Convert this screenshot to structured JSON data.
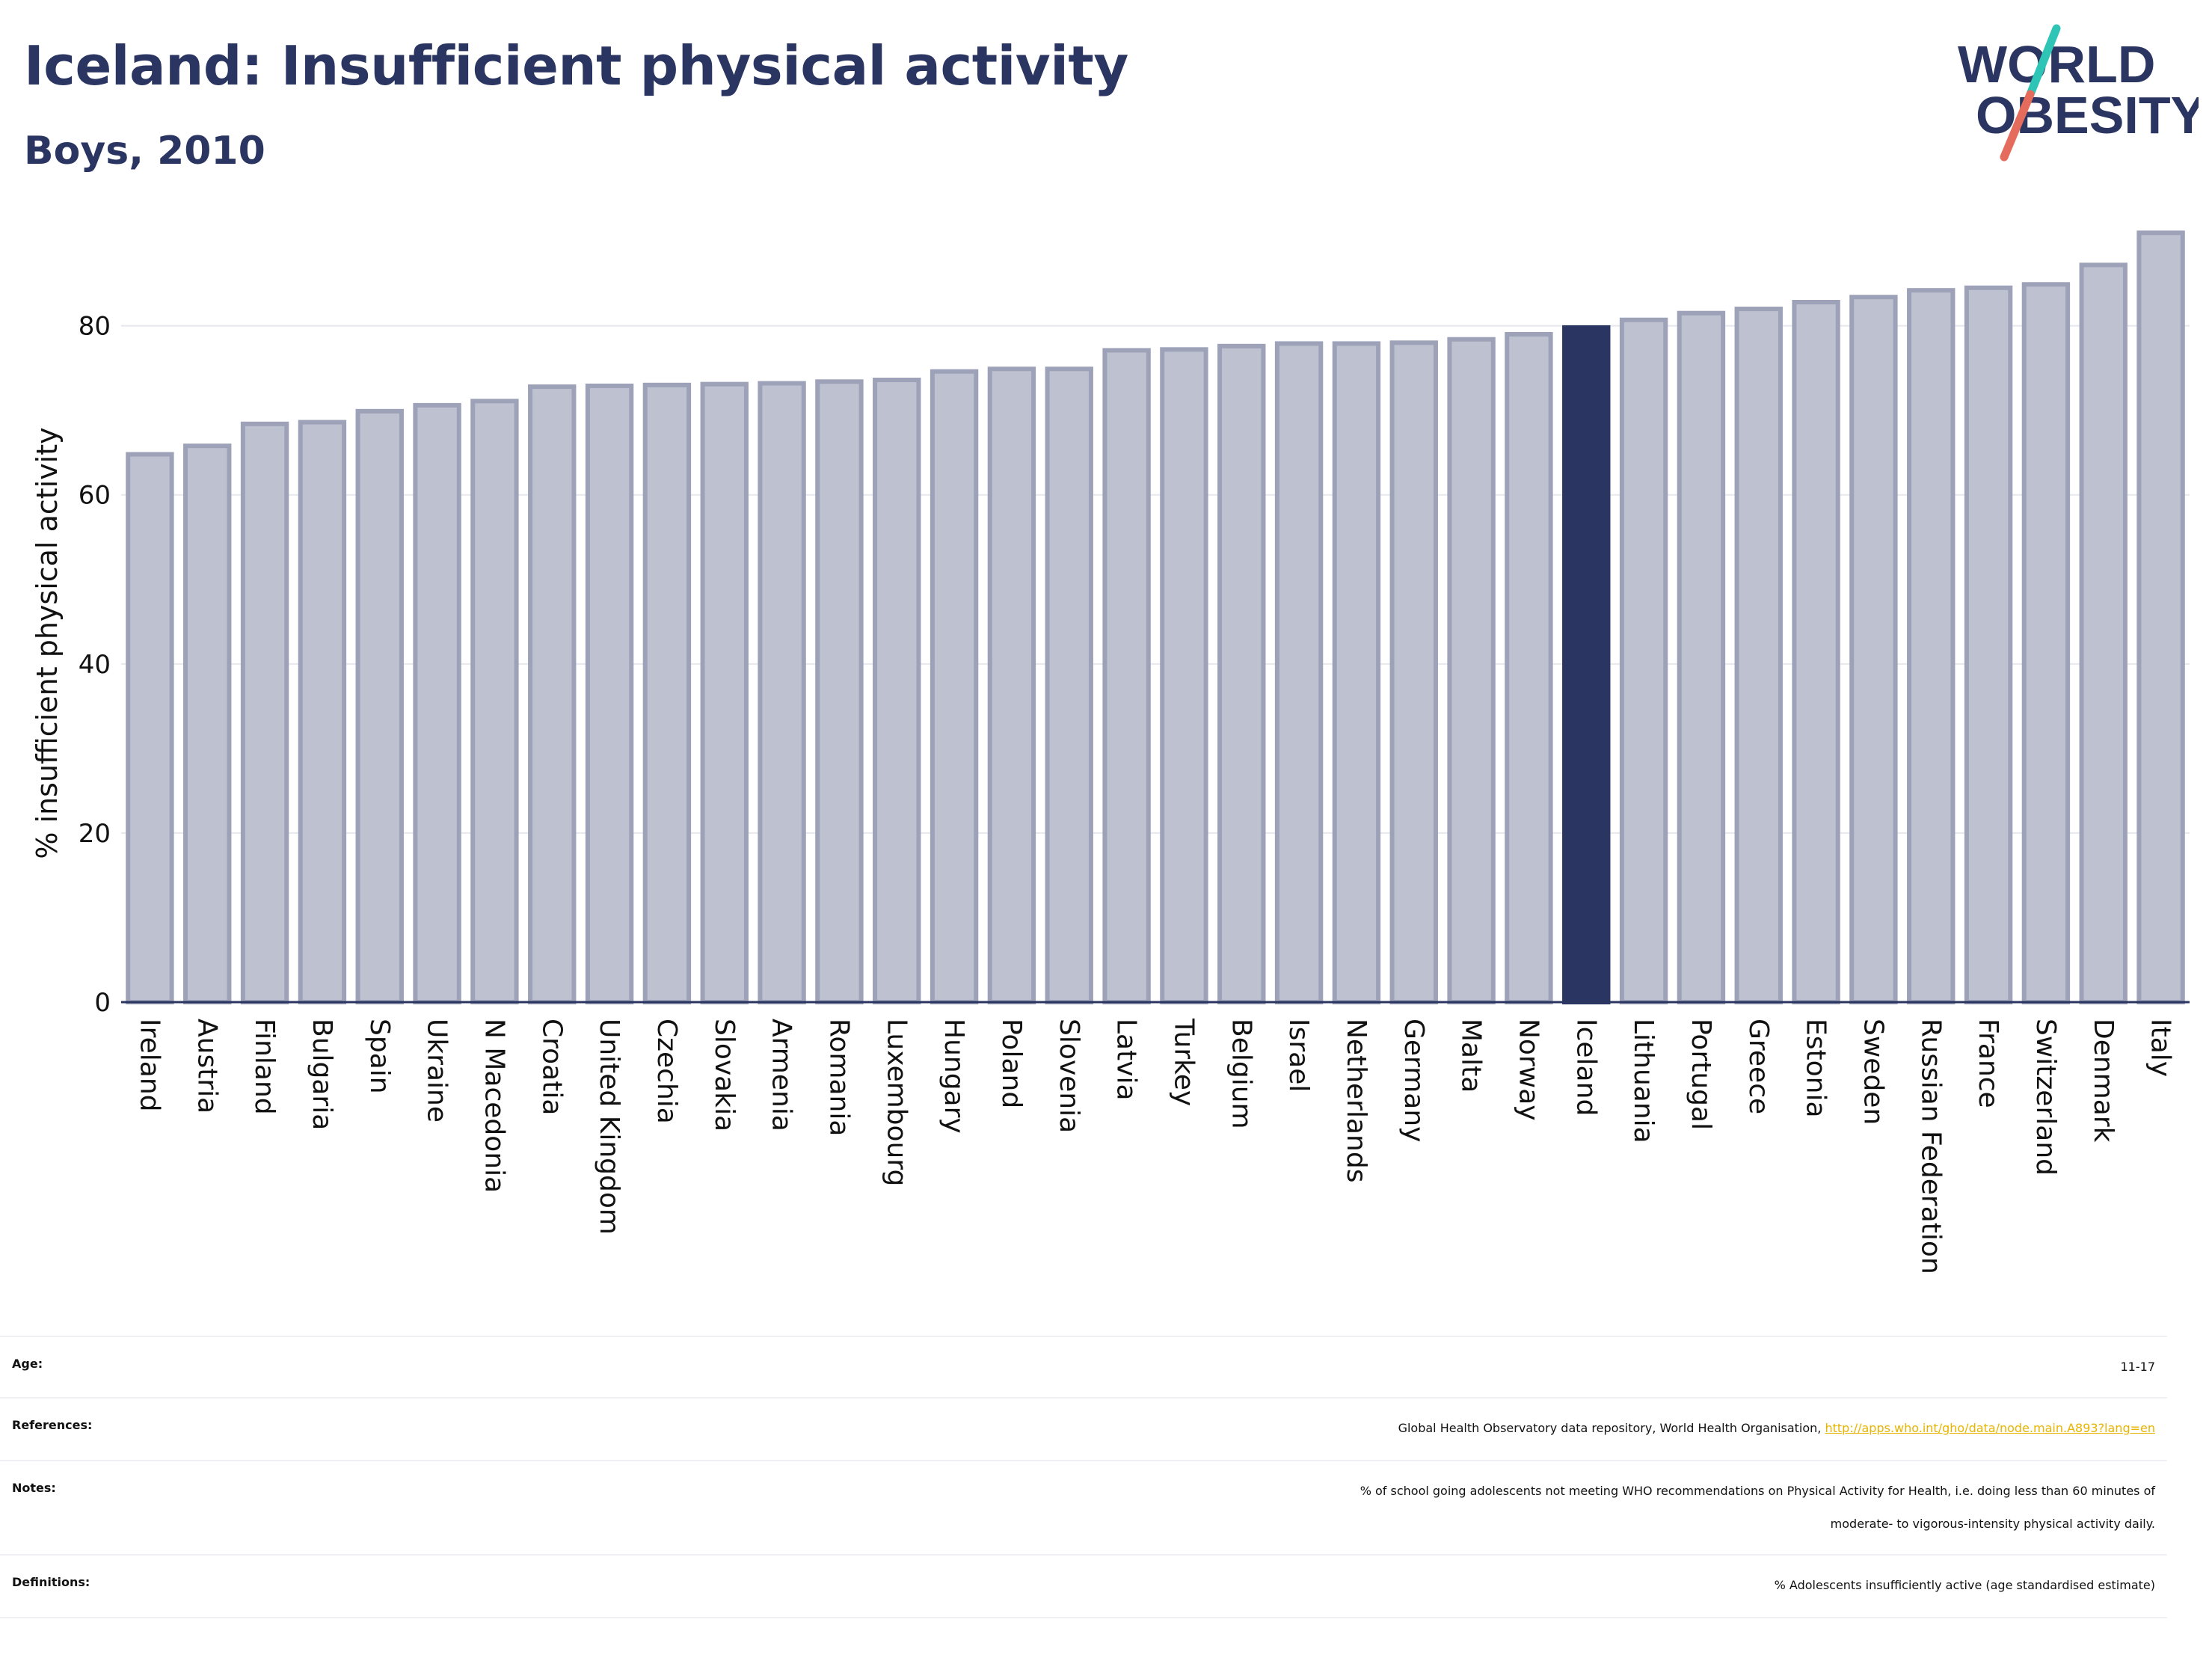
{
  "header": {
    "title": "Iceland: Insufficient physical activity",
    "subtitle": "Boys, 2010"
  },
  "logo": {
    "line1": "WORLD",
    "line2": "OBESITY"
  },
  "colors": {
    "title": "#2b3561",
    "bar": "#bec1cf",
    "bar_border": "#9da2b8",
    "highlight": "#2b3561",
    "accent_teal": "#2ec4b6",
    "accent_red": "#e56b5d"
  },
  "chart_data": {
    "type": "bar",
    "title": "Iceland: Insufficient physical activity",
    "subtitle": "Boys, 2010",
    "xlabel": "",
    "ylabel": "% insufficient physical activity",
    "ylim": [
      0,
      92
    ],
    "yticks": [
      0,
      20,
      40,
      60,
      80
    ],
    "grid": true,
    "highlight": "Iceland",
    "categories": [
      "Ireland",
      "Austria",
      "Finland",
      "Bulgaria",
      "Spain",
      "Ukraine",
      "N Macedonia",
      "Croatia",
      "United Kingdom",
      "Czechia",
      "Slovakia",
      "Armenia",
      "Romania",
      "Luxembourg",
      "Hungary",
      "Poland",
      "Slovenia",
      "Latvia",
      "Turkey",
      "Belgium",
      "Israel",
      "Netherlands",
      "Germany",
      "Malta",
      "Norway",
      "Iceland",
      "Lithuania",
      "Portugal",
      "Greece",
      "Estonia",
      "Sweden",
      "Russian Federation",
      "France",
      "Switzerland",
      "Denmark",
      "Italy"
    ],
    "values": [
      64.8,
      65.8,
      68.4,
      68.6,
      69.9,
      70.6,
      71.1,
      72.8,
      72.9,
      73.0,
      73.1,
      73.2,
      73.4,
      73.6,
      74.6,
      74.9,
      74.9,
      77.1,
      77.2,
      77.6,
      77.9,
      77.9,
      78.0,
      78.4,
      79.0,
      79.8,
      80.7,
      81.5,
      82.0,
      82.8,
      83.4,
      84.2,
      84.5,
      84.9,
      87.2,
      91.0
    ]
  },
  "meta": {
    "age": {
      "label": "Age:",
      "value": "11-17"
    },
    "references": {
      "label": "References:",
      "text": "Global Health Observatory data repository, World Health Organisation, ",
      "link": "http://apps.who.int/gho/data/node.main.A893?lang=en"
    },
    "notes": {
      "label": "Notes:",
      "line1": "% of school going adolescents not meeting WHO recommendations on Physical Activity for Health, i.e. doing less than 60 minutes of",
      "line2": "moderate- to vigorous-intensity physical activity daily."
    },
    "definitions": {
      "label": "Definitions:",
      "value": "% Adolescents insufficiently active (age standardised estimate)"
    }
  }
}
